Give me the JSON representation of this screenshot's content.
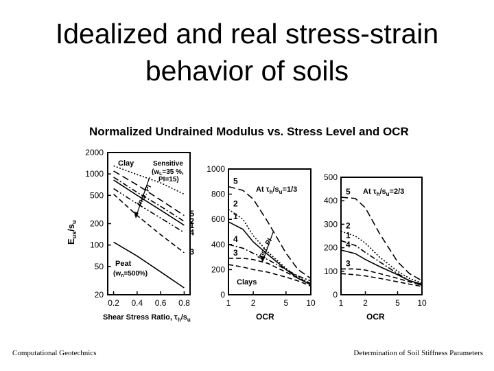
{
  "slide": {
    "title_line1": "Idealized and real stress-strain",
    "title_line2": "behavior of soils",
    "footer_left": "Computational Geotechnics",
    "footer_right": "Determination of Soil Stiffness Parameters"
  },
  "chart_data": [
    {
      "type": "line",
      "figure_title": "Normalized Undrained Modulus vs. Stress Level and OCR",
      "ylabel": "E",
      "ylabel_sub": "us",
      "ylabel_tail": "/s",
      "ylabel_tail_sub": "u",
      "xlabel": "Shear Stress Ratio, τ",
      "xlabel_sub": "h",
      "xlabel_tail": "/s",
      "xlabel_tail_sub": "u",
      "yscale": "log",
      "xlim": [
        0.15,
        0.85
      ],
      "ylim": [
        20,
        2000
      ],
      "x_ticks": [
        0.2,
        0.4,
        0.6,
        0.8
      ],
      "x_tick_labels": [
        "0.2",
        "0.4",
        "0.6",
        "0.8"
      ],
      "y_ticks": [
        20,
        50,
        100,
        200,
        500,
        1000,
        2000
      ],
      "y_tick_labels": [
        "20",
        "50",
        "100",
        "200",
        "500",
        "1000",
        "2000"
      ],
      "annotations": [
        "Clay",
        "Sensitive",
        "(w",
        "L",
        "=35 %,",
        "PI=15)",
        "Incr. PI",
        "Peat",
        "(w",
        "n",
        "=500%)"
      ],
      "series": [
        {
          "name": "Sensitive",
          "style": "dotted",
          "x": [
            0.2,
            0.4,
            0.6,
            0.8
          ],
          "y": [
            1300,
            980,
            750,
            520
          ]
        },
        {
          "name": "5",
          "style": "long-dash",
          "x": [
            0.2,
            0.4,
            0.6,
            0.8
          ],
          "y": [
            1100,
            700,
            430,
            260
          ]
        },
        {
          "name": "2",
          "style": "dash-dot",
          "x": [
            0.2,
            0.4,
            0.6,
            0.8
          ],
          "y": [
            900,
            550,
            350,
            215
          ]
        },
        {
          "name": "1",
          "style": "solid",
          "x": [
            0.2,
            0.4,
            0.6,
            0.8
          ],
          "y": [
            820,
            500,
            310,
            190
          ]
        },
        {
          "name": "4",
          "style": "dash-dot-dot",
          "x": [
            0.2,
            0.4,
            0.6,
            0.8
          ],
          "y": [
            620,
            380,
            240,
            150
          ]
        },
        {
          "name": "3",
          "style": "dash",
          "x": [
            0.2,
            0.4,
            0.6,
            0.8
          ],
          "y": [
            520,
            260,
            140,
            78
          ]
        },
        {
          "name": "Peat",
          "style": "solid",
          "x": [
            0.2,
            0.4,
            0.6,
            0.8
          ],
          "y": [
            110,
            70,
            42,
            25
          ]
        }
      ],
      "labels": [
        {
          "text": "5",
          "x": 0.8,
          "y": 275
        },
        {
          "text": "2",
          "x": 0.8,
          "y": 215
        },
        {
          "text": "1",
          "x": 0.8,
          "y": 190
        },
        {
          "text": "4",
          "x": 0.8,
          "y": 150
        },
        {
          "text": "3",
          "x": 0.8,
          "y": 80
        }
      ]
    },
    {
      "type": "line",
      "xscale": "log",
      "xlabel": "OCR",
      "xlim": [
        1,
        10
      ],
      "ylim": [
        0,
        1000
      ],
      "x_ticks": [
        1,
        2,
        5,
        10
      ],
      "x_tick_labels": [
        "1",
        "2",
        "5",
        "10"
      ],
      "y_ticks": [
        0,
        200,
        400,
        600,
        800,
        1000
      ],
      "y_tick_labels": [
        "0",
        "200",
        "400",
        "600",
        "800",
        "1000"
      ],
      "header": "At τ",
      "header_sub": "h",
      "header_mid": "/s",
      "header_sub2": "u",
      "header_tail": "=1/3",
      "annotations": [
        "Incr. PI",
        "Clays"
      ],
      "series": [
        {
          "name": "5",
          "style": "long-dash",
          "x": [
            1,
            1.5,
            2,
            3,
            5,
            7,
            10
          ],
          "y": [
            860,
            830,
            760,
            580,
            330,
            200,
            130
          ]
        },
        {
          "name": "2",
          "style": "dotted",
          "x": [
            1,
            1.5,
            2,
            3,
            5,
            7,
            10
          ],
          "y": [
            680,
            600,
            470,
            340,
            210,
            140,
            90
          ]
        },
        {
          "name": "1",
          "style": "solid",
          "x": [
            1,
            1.5,
            2,
            3,
            5,
            7,
            10
          ],
          "y": [
            580,
            520,
            420,
            320,
            200,
            130,
            80
          ]
        },
        {
          "name": "4",
          "style": "dash-dot",
          "x": [
            1,
            1.5,
            2,
            3,
            5,
            7,
            10
          ],
          "y": [
            400,
            370,
            330,
            280,
            200,
            150,
            110
          ]
        },
        {
          "name": "3",
          "style": "dash",
          "x": [
            1,
            1.5,
            2,
            3,
            5,
            7,
            10
          ],
          "y": [
            290,
            290,
            280,
            250,
            180,
            130,
            90
          ]
        },
        {
          "name": "",
          "style": "dash",
          "x": [
            1,
            1.5,
            2,
            3,
            5,
            7,
            10
          ],
          "y": [
            240,
            220,
            200,
            180,
            140,
            110,
            70
          ]
        }
      ]
    },
    {
      "type": "line",
      "xscale": "log",
      "xlabel": "OCR",
      "xlim": [
        1,
        10
      ],
      "ylim": [
        0,
        500
      ],
      "x_ticks": [
        1,
        2,
        5,
        10
      ],
      "x_tick_labels": [
        "1",
        "2",
        "5",
        "10"
      ],
      "y_ticks": [
        0,
        100,
        200,
        300,
        400,
        500
      ],
      "y_tick_labels": [
        "0",
        "100",
        "200",
        "300",
        "400",
        "500"
      ],
      "header": "At τ",
      "header_sub": "h",
      "header_mid": "/s",
      "header_sub2": "u",
      "header_tail": "=2/3",
      "series": [
        {
          "name": "5",
          "style": "long-dash",
          "x": [
            1,
            1.5,
            2,
            3,
            5,
            7,
            10
          ],
          "y": [
            415,
            410,
            370,
            260,
            140,
            90,
            60
          ]
        },
        {
          "name": "2",
          "style": "dotted",
          "x": [
            1,
            1.5,
            2,
            3,
            5,
            7,
            10
          ],
          "y": [
            270,
            250,
            220,
            160,
            100,
            70,
            50
          ]
        },
        {
          "name": "1",
          "style": "dash-dot",
          "x": [
            1,
            1.5,
            2,
            3,
            5,
            7,
            10
          ],
          "y": [
            230,
            210,
            180,
            140,
            90,
            60,
            40
          ]
        },
        {
          "name": "4",
          "style": "solid",
          "x": [
            1,
            1.5,
            2,
            3,
            5,
            7,
            10
          ],
          "y": [
            190,
            175,
            150,
            120,
            85,
            60,
            45
          ]
        },
        {
          "name": "3",
          "style": "dash",
          "x": [
            1,
            1.5,
            2,
            3,
            5,
            7,
            10
          ],
          "y": [
            110,
            110,
            105,
            90,
            70,
            55,
            40
          ]
        },
        {
          "name": "",
          "style": "dash",
          "x": [
            1,
            1.5,
            2,
            3,
            5,
            7,
            10
          ],
          "y": [
            90,
            85,
            80,
            70,
            55,
            45,
            35
          ]
        }
      ]
    }
  ]
}
